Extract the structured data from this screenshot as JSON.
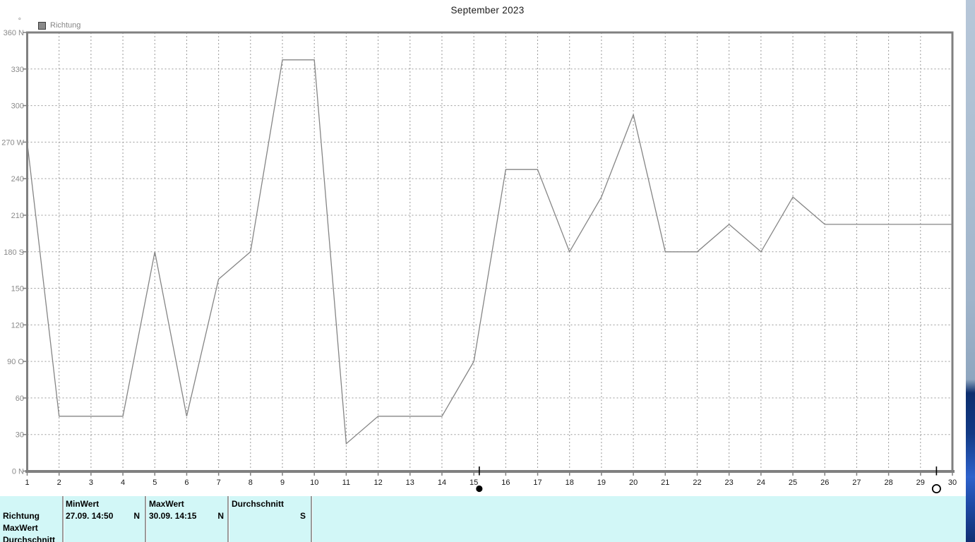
{
  "title": "September 2023",
  "legend": {
    "label": "Richtung",
    "swatch_color": "#8a8a8a"
  },
  "chart_data": {
    "type": "line",
    "title": "September 2023",
    "series": [
      {
        "name": "Richtung",
        "values": [
          270,
          45,
          45,
          45,
          180,
          45,
          157.5,
          180,
          337.5,
          337.5,
          22.5,
          45,
          45,
          45,
          90,
          247.5,
          247.5,
          180,
          225,
          292.5,
          180,
          180,
          202.5,
          180,
          225,
          202.5,
          202.5,
          202.5,
          202.5,
          202.5
        ]
      }
    ],
    "x": [
      1,
      2,
      3,
      4,
      5,
      6,
      7,
      8,
      9,
      10,
      11,
      12,
      13,
      14,
      15,
      16,
      17,
      18,
      19,
      20,
      21,
      22,
      23,
      24,
      25,
      26,
      27,
      28,
      29,
      30
    ],
    "xlabel": "",
    "ylabel": "°",
    "ylim": [
      0,
      360
    ],
    "y_ticks": [
      {
        "value": 360,
        "label": "360 N"
      },
      {
        "value": 330,
        "label": "330"
      },
      {
        "value": 300,
        "label": "300"
      },
      {
        "value": 270,
        "label": "270 W"
      },
      {
        "value": 240,
        "label": "240"
      },
      {
        "value": 210,
        "label": "210"
      },
      {
        "value": 180,
        "label": "180 S"
      },
      {
        "value": 150,
        "label": "150"
      },
      {
        "value": 120,
        "label": "120"
      },
      {
        "value": 90,
        "label": "90 O"
      },
      {
        "value": 60,
        "label": "60"
      },
      {
        "value": 30,
        "label": "30"
      },
      {
        "value": 0,
        "label": "0 N"
      }
    ],
    "grid": "dashed",
    "legend_position": "top-left",
    "line_color": "#858585",
    "moon_markers": [
      {
        "day": 15.17,
        "phase": "new-moon"
      },
      {
        "day": 29.5,
        "phase": "full-moon"
      }
    ]
  },
  "stats_table": {
    "row_labels": [
      "Richtung",
      "MaxWert",
      "Durchschnitt"
    ],
    "columns": [
      {
        "header": "MinWert",
        "value": "27.09. 14:50",
        "unit": "N"
      },
      {
        "header": "MaxWert",
        "value": "30.09. 14:15",
        "unit": "N"
      },
      {
        "header": "Durchschnitt",
        "value": "",
        "unit": "S"
      }
    ]
  },
  "colors": {
    "table_background": "#d2f7f7",
    "axis_gray": "#808080",
    "grid_gray": "#999999",
    "label_gray": "#8a8a8a",
    "desktop_blue_dark": "#123a85",
    "desktop_blue_bright": "#2e62cc",
    "desktop_blue_light": "#abbed1"
  }
}
